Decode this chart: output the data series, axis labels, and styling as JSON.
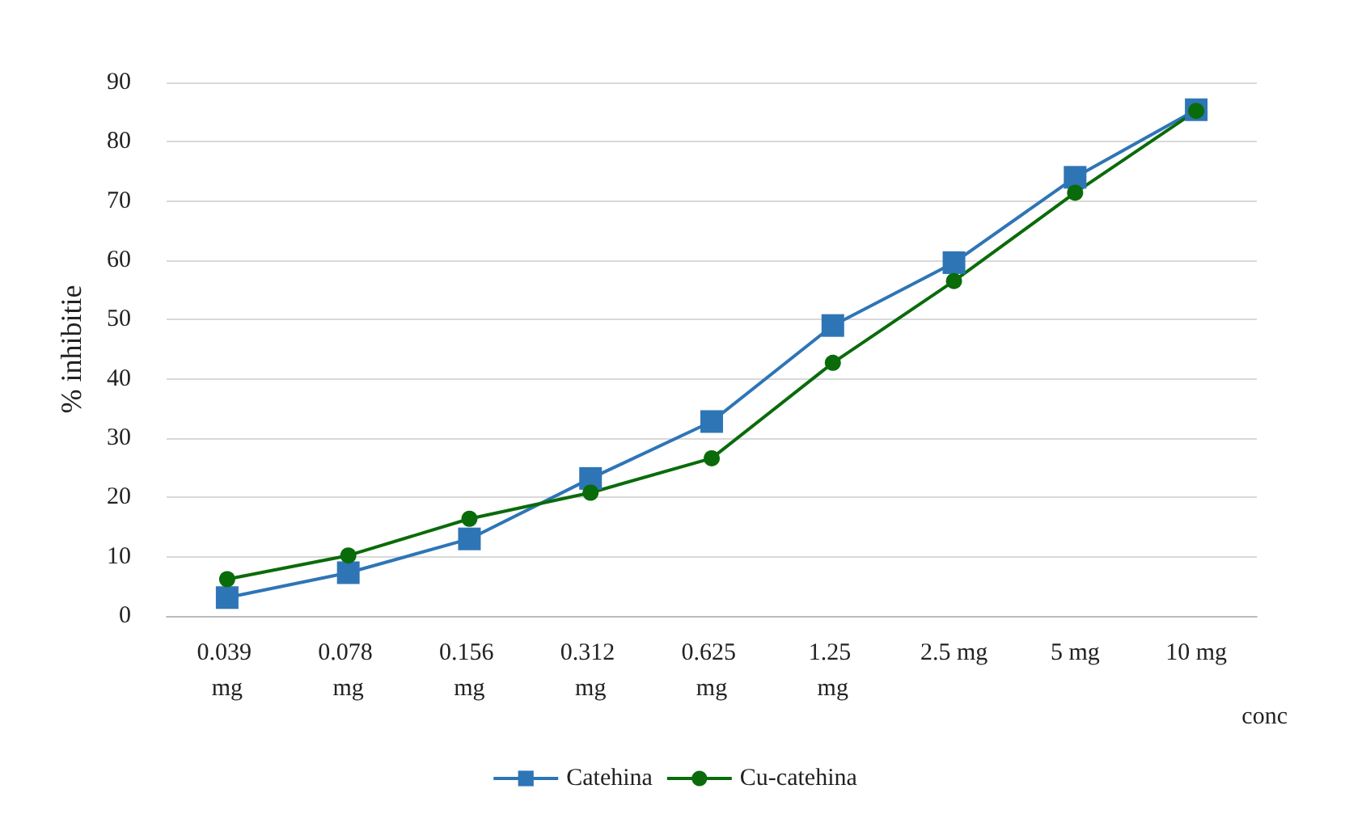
{
  "chart_data": {
    "type": "line",
    "ylabel": "% inhibitie",
    "xlabel": "conc",
    "categories": [
      "0.039 mg",
      "0.078 mg",
      "0.156 mg",
      "0.312 mg",
      "0.625 mg",
      "1.25 mg",
      "2.5 mg",
      "5 mg",
      "10 mg"
    ],
    "series": [
      {
        "name": "Catehina",
        "color": "#2e75b6",
        "marker": "square",
        "values": [
          3.1,
          7.3,
          13,
          23.2,
          32.8,
          49,
          59.6,
          74,
          85.4
        ]
      },
      {
        "name": "Cu-catehina",
        "color": "#0a6b0a",
        "marker": "circle",
        "values": [
          6.2,
          10.2,
          16.4,
          20.8,
          26.6,
          42.7,
          56.5,
          71.4,
          85.2
        ]
      }
    ],
    "ylim": [
      0,
      90
    ],
    "yticks": [
      0,
      10,
      20,
      30,
      40,
      50,
      60,
      70,
      80,
      90
    ],
    "grid": "y",
    "legend": "bottom"
  }
}
